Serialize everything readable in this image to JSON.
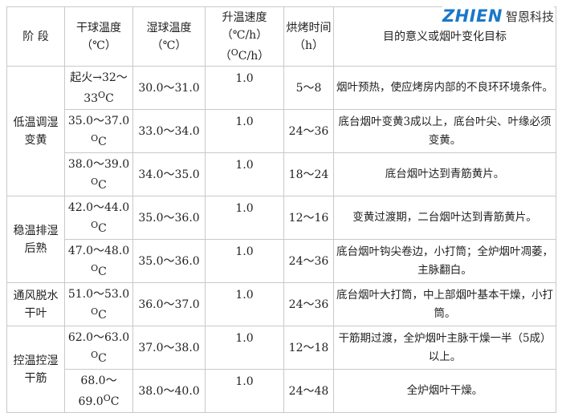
{
  "logo": {
    "brand": "ZHIEN",
    "chinese": "智恩科技"
  },
  "unit": {
    "o": "O",
    "c": "C"
  },
  "headers": {
    "stage": "阶 段",
    "dry_temp": "干球温度",
    "dry_unit": "（℃）",
    "wet_temp": "湿球温度",
    "wet_unit": "（℃）",
    "rate": "升温速度",
    "rate_unit1": "（℃/h）",
    "rate_unit2_o": "O",
    "rate_unit2_rest": "C/h）",
    "rate_unit2_open": "（",
    "time": "烘烤时间",
    "time_unit": "（h）",
    "goal": "目的意义或烟叶变化目标"
  },
  "stages": [
    {
      "name": "低温调湿变黄"
    },
    {
      "name": "稳温排湿后熟"
    },
    {
      "name": "通风脱水干叶"
    },
    {
      "name": "控温控湿干筋"
    }
  ],
  "rows": [
    {
      "dry": "起火→32～",
      "dry2": "33",
      "wet": "30.0～31.0",
      "rate": "1.0",
      "time": "5～8",
      "goal": "烟叶预热，使应烤房内部的不良环环境条件。"
    },
    {
      "dry": "35.0～37.0",
      "dry2": "",
      "wet": "33.0～34.0",
      "rate": "1.0",
      "time": "24～36",
      "goal": "底台烟叶变黄3成以上，底台叶尖、叶缘必须变黄。"
    },
    {
      "dry": "38.0～39.0",
      "dry2": "",
      "wet": "34.0～35.0",
      "rate": "1.0",
      "time": "18～24",
      "goal": "底台烟叶达到青筋黄片。"
    },
    {
      "dry": "42.0～44.0",
      "dry2": "",
      "wet": "35.0～36.0",
      "rate": "1.0",
      "time": "12～16",
      "goal": "变黄过渡期，二台烟叶达到青筋黄片。"
    },
    {
      "dry": "47.0～48.0",
      "dry2": "",
      "wet": "35.0～36.0",
      "rate": "1.0",
      "time": "24～36",
      "goal": "底台烟叶钩尖卷边，小打筒；全炉烟叶凋萎，主脉翻白。"
    },
    {
      "dry": "51.0～53.0",
      "dry2": "",
      "wet": "36.0～37.0",
      "rate": "1.0",
      "time": "24～36",
      "goal": "底台烟叶大打筒，中上部烟叶基本干燥，小打筒。"
    },
    {
      "dry": "62.0～63.0",
      "dry2": "",
      "wet": "37.0～38.0",
      "rate": "1.0",
      "time": "12～18",
      "goal": "干筋期过渡，全炉烟叶主脉干燥一半（5成）以上。"
    },
    {
      "dry": "68.0～",
      "dry2": "69.0",
      "wet": "38.0～40.0",
      "rate": "1.0",
      "time": "24～48",
      "goal": "全炉烟叶干燥。"
    }
  ]
}
